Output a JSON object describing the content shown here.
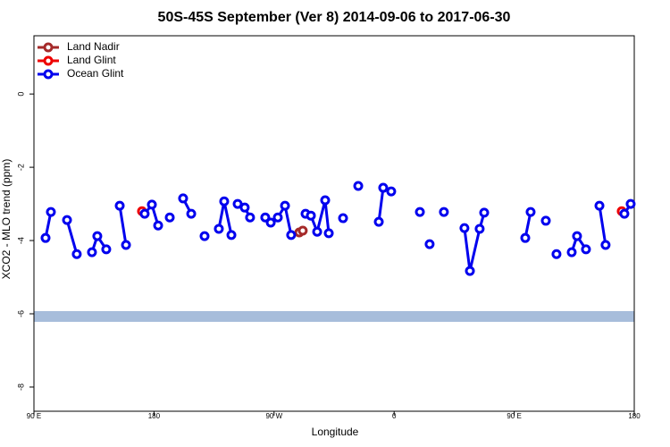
{
  "chart_data": {
    "type": "line",
    "title": "50S-45S September (Ver 8)   2014-09-06 to 2017-06-30",
    "x_label": "Longitude",
    "y_label": "XCO2 - MLO trend (ppm)",
    "xlim": [
      90,
      540
    ],
    "xticks": [
      {
        "value": 90,
        "label": "90 E"
      },
      180,
      {
        "value": 270,
        "label": "90 W"
      },
      {
        "value": 360,
        "label": "0"
      },
      {
        "value": 450,
        "label": "90 E"
      },
      {
        "value": 540,
        "label": "180"
      }
    ],
    "ylim": [
      -8.66,
      1.59
    ],
    "yticks": [
      0,
      -2,
      -4,
      -6,
      -8
    ],
    "legend": "top-left",
    "series": [
      {
        "name": "Land Nadir",
        "color": "#a52a2a",
        "x": [
          288.9,
          291.5
        ],
        "values": [
          -3.78,
          -3.73
        ]
      },
      {
        "name": "Land Glint",
        "color": "#ee0000",
        "x": [
          171.0,
          null,
          530.6
        ],
        "values": [
          -3.2,
          null,
          -3.2
        ]
      },
      {
        "name": "Ocean Glint",
        "color": "#0000ee",
        "x": [
          98.7,
          102.7,
          null,
          114.8,
          122.1,
          null,
          133.5,
          137.5,
          144.2,
          null,
          154.3,
          159.0,
          null,
          173.0,
          178.4,
          183.1,
          null,
          191.8,
          null,
          201.8,
          207.9,
          null,
          217.9,
          null,
          228.6,
          232.6,
          238.0,
          null,
          242.7,
          248.0,
          252.0,
          null,
          263.4,
          267.5,
          272.8,
          278.2,
          282.8,
          null,
          293.6,
          297.6,
          302.3,
          308.3,
          311.0,
          null,
          321.7,
          null,
          333.1,
          null,
          348.5,
          351.8,
          357.8,
          null,
          379.3,
          null,
          386.6,
          null,
          397.3,
          null,
          412.7,
          416.8,
          424.1,
          427.5,
          null,
          458.3,
          462.3,
          null,
          473.7,
          null,
          481.7,
          null,
          493.1,
          497.1,
          503.8,
          null,
          513.9,
          518.5,
          null,
          532.6,
          537.3
        ],
        "values": [
          -3.93,
          -3.22,
          null,
          -3.44,
          -4.37,
          null,
          -4.32,
          -3.88,
          -4.24,
          null,
          -3.05,
          -4.12,
          null,
          -3.27,
          -3.02,
          -3.59,
          null,
          -3.37,
          null,
          -2.85,
          -3.27,
          null,
          -3.88,
          null,
          -3.68,
          -2.93,
          -3.85,
          null,
          -3.0,
          -3.1,
          -3.37,
          null,
          -3.37,
          -3.51,
          -3.37,
          -3.05,
          -3.85,
          null,
          -3.27,
          -3.32,
          -3.76,
          -2.9,
          -3.8,
          null,
          -3.39,
          null,
          -2.51,
          null,
          -3.49,
          -2.56,
          -2.66,
          null,
          -3.22,
          null,
          -4.1,
          null,
          -3.22,
          null,
          -3.66,
          -4.83,
          -3.68,
          -3.24,
          null,
          -3.93,
          -3.22,
          null,
          -3.46,
          null,
          -4.37,
          null,
          -4.32,
          -3.88,
          -4.24,
          null,
          -3.05,
          -4.12,
          null,
          -3.27,
          -3.0
        ]
      }
    ]
  }
}
